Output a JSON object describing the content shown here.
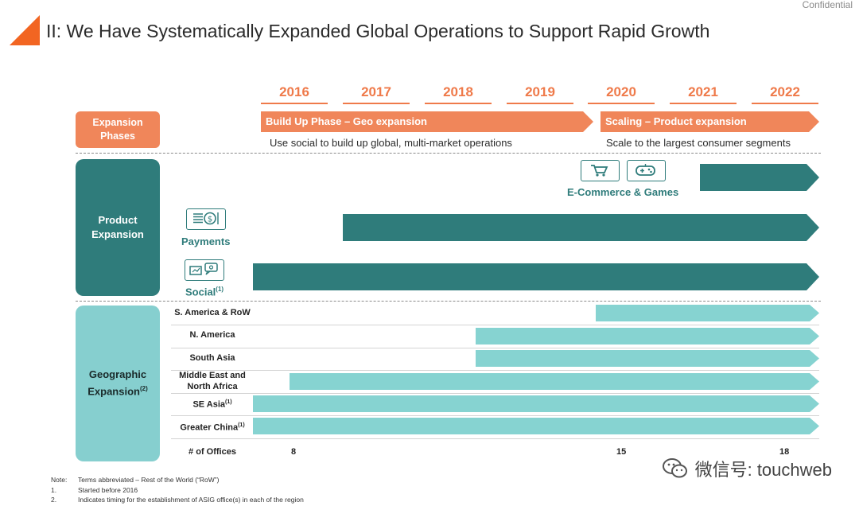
{
  "header": {
    "confidential": "Confidential",
    "title": "II: We Have Systematically Expanded Global Operations to Support Rapid Growth"
  },
  "years": [
    "2016",
    "2017",
    "2018",
    "2019",
    "2020",
    "2021",
    "2022"
  ],
  "labels": {
    "phases_line1": "Expansion",
    "phases_line2": "Phases",
    "product_line1": "Product",
    "product_line2": "Expansion",
    "geo_line1": "Geographic",
    "geo_line2": "Expansion",
    "geo_sup": "(2)"
  },
  "phases": {
    "build_up": "Build Up Phase – Geo expansion",
    "build_up_desc": "Use social to build up global, multi-market operations",
    "scaling": "Scaling – Product expansion",
    "scaling_desc": "Scale to the largest consumer segments"
  },
  "products": {
    "ecommerce_games": "E-Commerce & Games",
    "payments": "Payments",
    "social": "Social",
    "social_sup": "(1)"
  },
  "regions": {
    "s_america": "S. America & RoW",
    "n_america": "N. America",
    "south_asia": "South Asia",
    "mena_line1": "Middle East and",
    "mena_line2": "North Africa",
    "se_asia": "SE Asia",
    "se_asia_sup": "(1)",
    "greater_china": "Greater China",
    "greater_china_sup": "(1)"
  },
  "offices": {
    "label": "# of Offices",
    "v2016": "8",
    "v2020": "15",
    "v2022": "18"
  },
  "notes": {
    "note_label": "Note:",
    "note_text": "Terms abbreviated – Rest of the World (“RoW”)",
    "n1_label": "1.",
    "n1_text": "Started before 2016",
    "n2_label": "2.",
    "n2_text": "Indicates timing for the establishment of ASIG office(s) in each of the region"
  },
  "watermark": "微信号: touchweb",
  "colors": {
    "orange": "#f0865a",
    "teal_dark": "#2f7c7b",
    "teal_light": "#86d3d1"
  }
}
